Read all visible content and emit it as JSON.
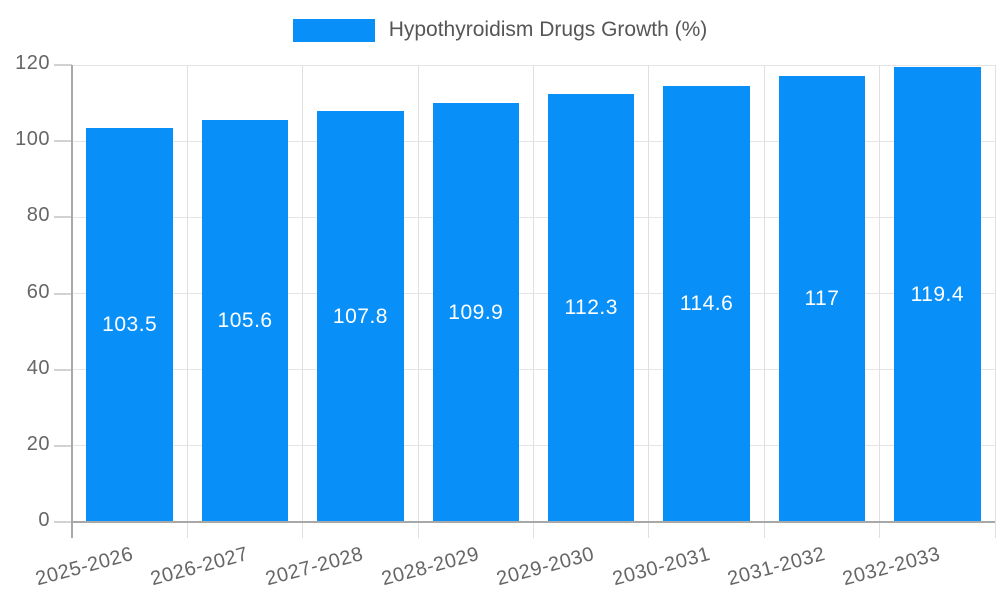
{
  "chart_data": {
    "type": "bar",
    "title": "Hypothyroidism Drugs Growth (%)",
    "categories": [
      "2025-2026",
      "2026-2027",
      "2027-2028",
      "2028-2029",
      "2029-2030",
      "2030-2031",
      "2031-2032",
      "2032-2033"
    ],
    "values": [
      103.5,
      105.6,
      107.8,
      109.9,
      112.3,
      114.6,
      117,
      119.4
    ],
    "xlabel": "",
    "ylabel": "",
    "ylim": [
      0,
      120
    ],
    "yticks": [
      0,
      20,
      40,
      60,
      80,
      100,
      120
    ],
    "grid": true,
    "legend_position": "top",
    "colors": {
      "bar": "#0890F8",
      "value_label": "#ffffff",
      "axis_text": "#666666",
      "legend_text": "#565656",
      "hgrid": "#e5e5e5",
      "vgrid": "#e0e0e0",
      "tick": "#d2d2d2",
      "axis_line": "#a8a8a8",
      "background": "#ffffff"
    }
  }
}
